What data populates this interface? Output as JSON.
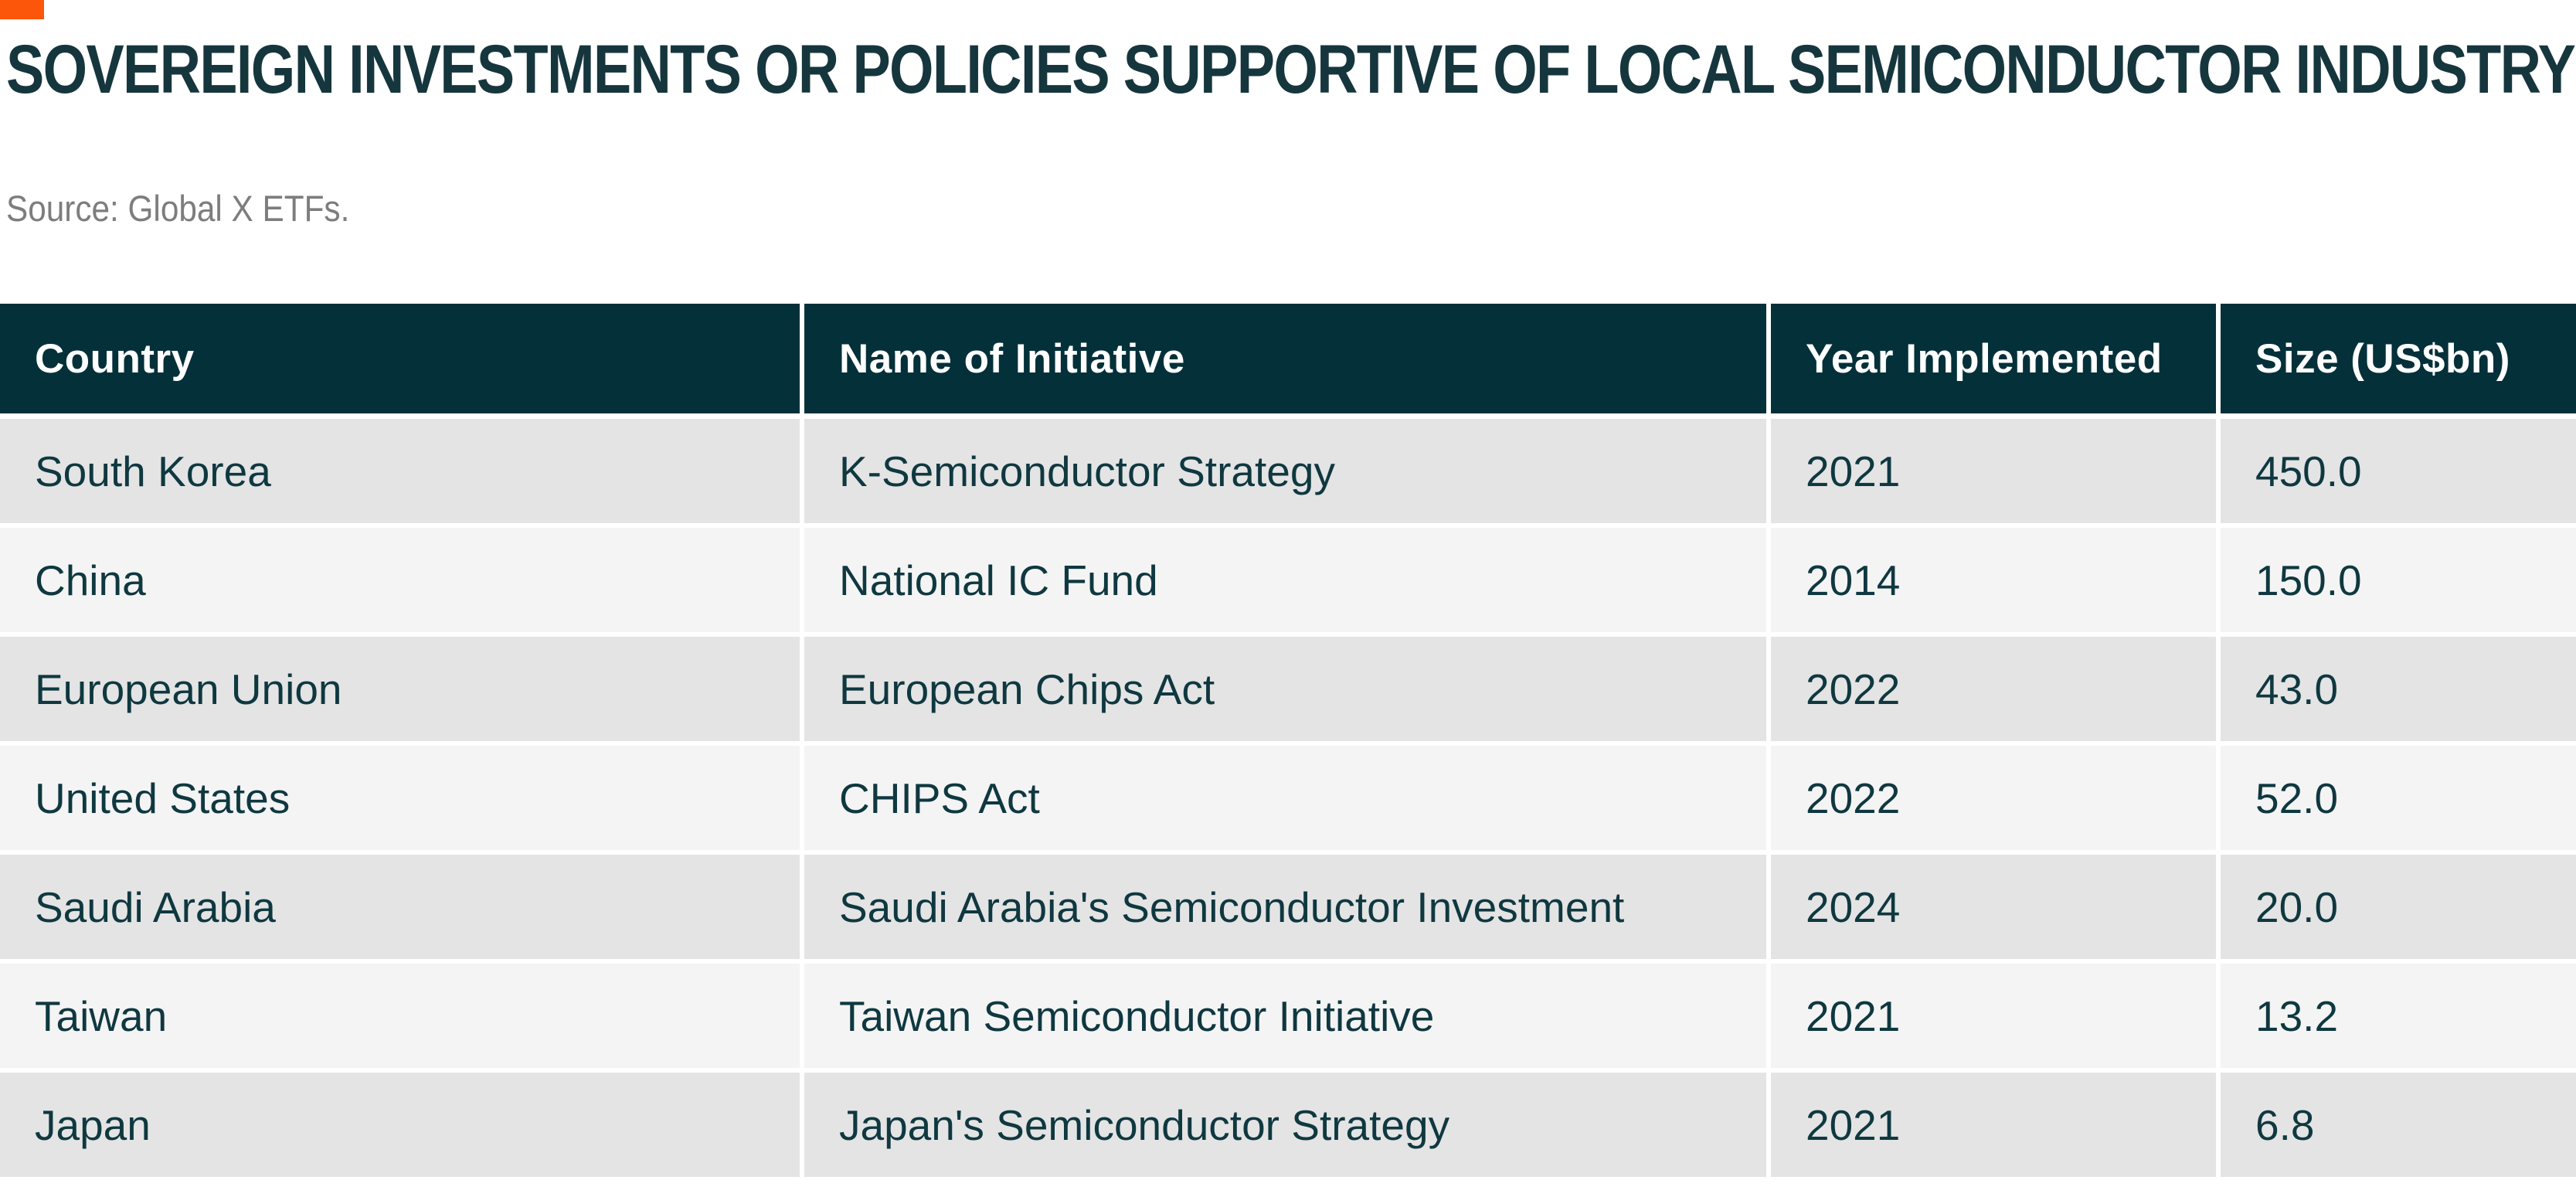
{
  "meta": {
    "background_color": "#FFFFFF",
    "accent_color": "#FB560A",
    "header_bg_color": "#04303A",
    "header_text_color": "#FFFFFF",
    "row_dark_bg_color": "#E4E4E4",
    "row_light_bg_color": "#F4F4F4",
    "body_text_color": "#0F3840",
    "title_color": "#16363E",
    "source_color": "#7D7D7D"
  },
  "header": {
    "title": "SOVEREIGN INVESTMENTS OR POLICIES SUPPORTIVE OF LOCAL SEMICONDUCTOR INDUSTRY",
    "source": "Source: Global X ETFs."
  },
  "table": {
    "columns": [
      "Country",
      "Name of Initiative",
      "Year Implemented",
      "Size (US$bn)"
    ],
    "rows": [
      {
        "country": "South Korea",
        "initiative": "K-Semiconductor Strategy",
        "year": "2021",
        "size": "450.0"
      },
      {
        "country": "China",
        "initiative": "National IC Fund",
        "year": "2014",
        "size": "150.0"
      },
      {
        "country": "European Union",
        "initiative": "European Chips Act",
        "year": "2022",
        "size": "43.0"
      },
      {
        "country": "United States",
        "initiative": "CHIPS Act",
        "year": "2022",
        "size": "52.0"
      },
      {
        "country": "Saudi Arabia",
        "initiative": "Saudi Arabia's Semiconductor Investment",
        "year": "2024",
        "size": "20.0"
      },
      {
        "country": "Taiwan",
        "initiative": "Taiwan Semiconductor Initiative",
        "year": "2021",
        "size": "13.2"
      },
      {
        "country": "Japan",
        "initiative": "Japan's Semiconductor Strategy",
        "year": "2021",
        "size": "6.8"
      }
    ]
  },
  "chart_data": {
    "type": "table",
    "title": "SOVEREIGN INVESTMENTS OR POLICIES SUPPORTIVE OF LOCAL SEMICONDUCTOR INDUSTRY",
    "source": "Source: Global X ETFs.",
    "columns": [
      "Country",
      "Name of Initiative",
      "Year Implemented",
      "Size (US$bn)"
    ],
    "rows": [
      [
        "South Korea",
        "K-Semiconductor Strategy",
        2021,
        450.0
      ],
      [
        "China",
        "National IC Fund",
        2014,
        150.0
      ],
      [
        "European Union",
        "European Chips Act",
        2022,
        43.0
      ],
      [
        "United States",
        "CHIPS Act",
        2022,
        52.0
      ],
      [
        "Saudi Arabia",
        "Saudi Arabia's Semiconductor Investment",
        2024,
        20.0
      ],
      [
        "Taiwan",
        "Taiwan Semiconductor Initiative",
        2021,
        13.2
      ],
      [
        "Japan",
        "Japan's Semiconductor Strategy",
        2021,
        6.8
      ]
    ]
  }
}
